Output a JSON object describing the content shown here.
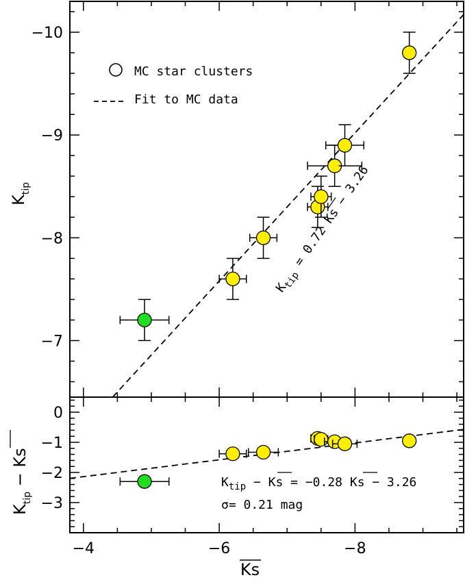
{
  "chart_data": [
    {
      "panel": "top",
      "type": "scatter",
      "ylabel": "K_tip",
      "ylabel_main": "K",
      "ylabel_sub": "tip",
      "xlim": [
        -3.8,
        -9.6
      ],
      "ylim": [
        -6.45,
        -10.3
      ],
      "y_ticks": [
        -7,
        -8,
        -9,
        -10
      ],
      "y_tick_labels": [
        "−7",
        "−8",
        "−9",
        "−10"
      ],
      "legend": {
        "position": "top-left",
        "entries": [
          {
            "symbol": "open-circle",
            "label": "MC star clusters"
          },
          {
            "symbol": "dashed-line",
            "label": "Fit to MC data"
          }
        ]
      },
      "fit": {
        "slope": 0.72,
        "intercept": -3.26
      },
      "annotation": {
        "main": "K",
        "sub": "tip",
        "rest": " = 0.72 Ks − 3.26"
      },
      "series": [
        {
          "color": "#ffee00",
          "points": [
            {
              "x": -6.2,
              "y": -7.6,
              "xerr": 0.2,
              "yerr": 0.2
            },
            {
              "x": -6.65,
              "y": -8.0,
              "xerr": 0.2,
              "yerr": 0.2
            },
            {
              "x": -7.45,
              "y": -8.3,
              "xerr": 0.15,
              "yerr": 0.2
            },
            {
              "x": -7.5,
              "y": -8.4,
              "xerr": 0.15,
              "yerr": 0.2
            },
            {
              "x": -7.7,
              "y": -8.7,
              "xerr": 0.4,
              "yerr": 0.2
            },
            {
              "x": -7.85,
              "y": -8.9,
              "xerr": 0.28,
              "yerr": 0.2
            },
            {
              "x": -8.8,
              "y": -9.8,
              "xerr": 0.08,
              "yerr": 0.2
            }
          ]
        },
        {
          "color": "#22dd22",
          "points": [
            {
              "x": -4.9,
              "y": -7.2,
              "xerr": 0.36,
              "yerr": 0.2
            }
          ]
        }
      ]
    },
    {
      "panel": "bottom",
      "type": "scatter",
      "xlabel": "Ks",
      "ylabel": "K_tip − Ks",
      "ylabel_main": "K",
      "ylabel_sub": "tip",
      "ylabel_rest": " − Ks",
      "xlim": [
        -3.8,
        -9.6
      ],
      "ylim": [
        -4.0,
        0.5
      ],
      "x_ticks": [
        -4,
        -6,
        -8
      ],
      "x_tick_labels": [
        "−4",
        "−6",
        "−8"
      ],
      "y_ticks": [
        0,
        -1,
        -2,
        -3
      ],
      "y_tick_labels": [
        "0",
        "−1",
        "−2",
        "−3"
      ],
      "fit": {
        "slope": -0.28,
        "intercept": -3.26
      },
      "annotation_line1": {
        "main": "K",
        "sub": "tip",
        "rest": " − Ks = −0.28 Ks − 3.26"
      },
      "annotation_line2": "σ= 0.21 mag",
      "series": [
        {
          "color": "#ffee00",
          "points": [
            {
              "x": -6.2,
              "y": -1.38,
              "xerr": 0.2
            },
            {
              "x": -6.65,
              "y": -1.33,
              "xerr": 0.22
            },
            {
              "x": -7.45,
              "y": -0.87,
              "xerr": 0.1
            },
            {
              "x": -7.5,
              "y": -0.9,
              "xerr": 0.1
            },
            {
              "x": -7.7,
              "y": -0.98,
              "xerr": 0.15
            },
            {
              "x": -7.85,
              "y": -1.05,
              "xerr": 0.18
            },
            {
              "x": -8.8,
              "y": -0.95,
              "xerr": 0.08
            }
          ]
        },
        {
          "color": "#22dd22",
          "points": [
            {
              "x": -4.9,
              "y": -2.3,
              "xerr": 0.36
            }
          ]
        }
      ]
    }
  ]
}
